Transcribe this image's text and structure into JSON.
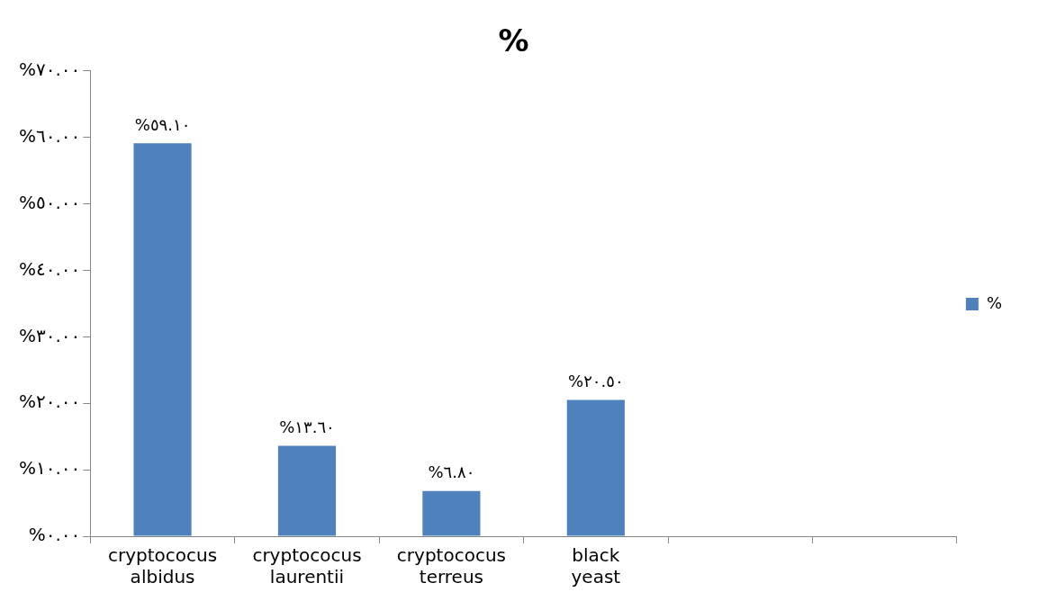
{
  "chart_data": {
    "type": "bar",
    "title": "%",
    "categories": [
      "cryptococus albidus",
      "cryptococus laurentii",
      "cryptococus terreus",
      "black yeast",
      null,
      null
    ],
    "series": [
      {
        "name": "%",
        "color": "#4f81bd",
        "values": [
          59.1,
          13.6,
          6.8,
          20.5,
          null,
          null
        ],
        "value_labels": [
          "%٥٩.١٠",
          "%١٣.٦٠",
          "%٦.٨٠",
          "%٢٠.٥٠",
          null,
          null
        ]
      }
    ],
    "ylim": [
      0,
      70
    ],
    "yticks": [
      {
        "value": 0,
        "label": "%٠.٠٠"
      },
      {
        "value": 10,
        "label": "%١٠.٠٠"
      },
      {
        "value": 20,
        "label": "%٢٠.٠٠"
      },
      {
        "value": 30,
        "label": "%٣٠.٠٠"
      },
      {
        "value": 40,
        "label": "%٤٠.٠٠"
      },
      {
        "value": 50,
        "label": "%٥٠.٠٠"
      },
      {
        "value": 60,
        "label": "%٦٠.٠٠"
      },
      {
        "value": 70,
        "label": "%٧٠.٠٠"
      }
    ],
    "grid": false,
    "legend": "right"
  }
}
